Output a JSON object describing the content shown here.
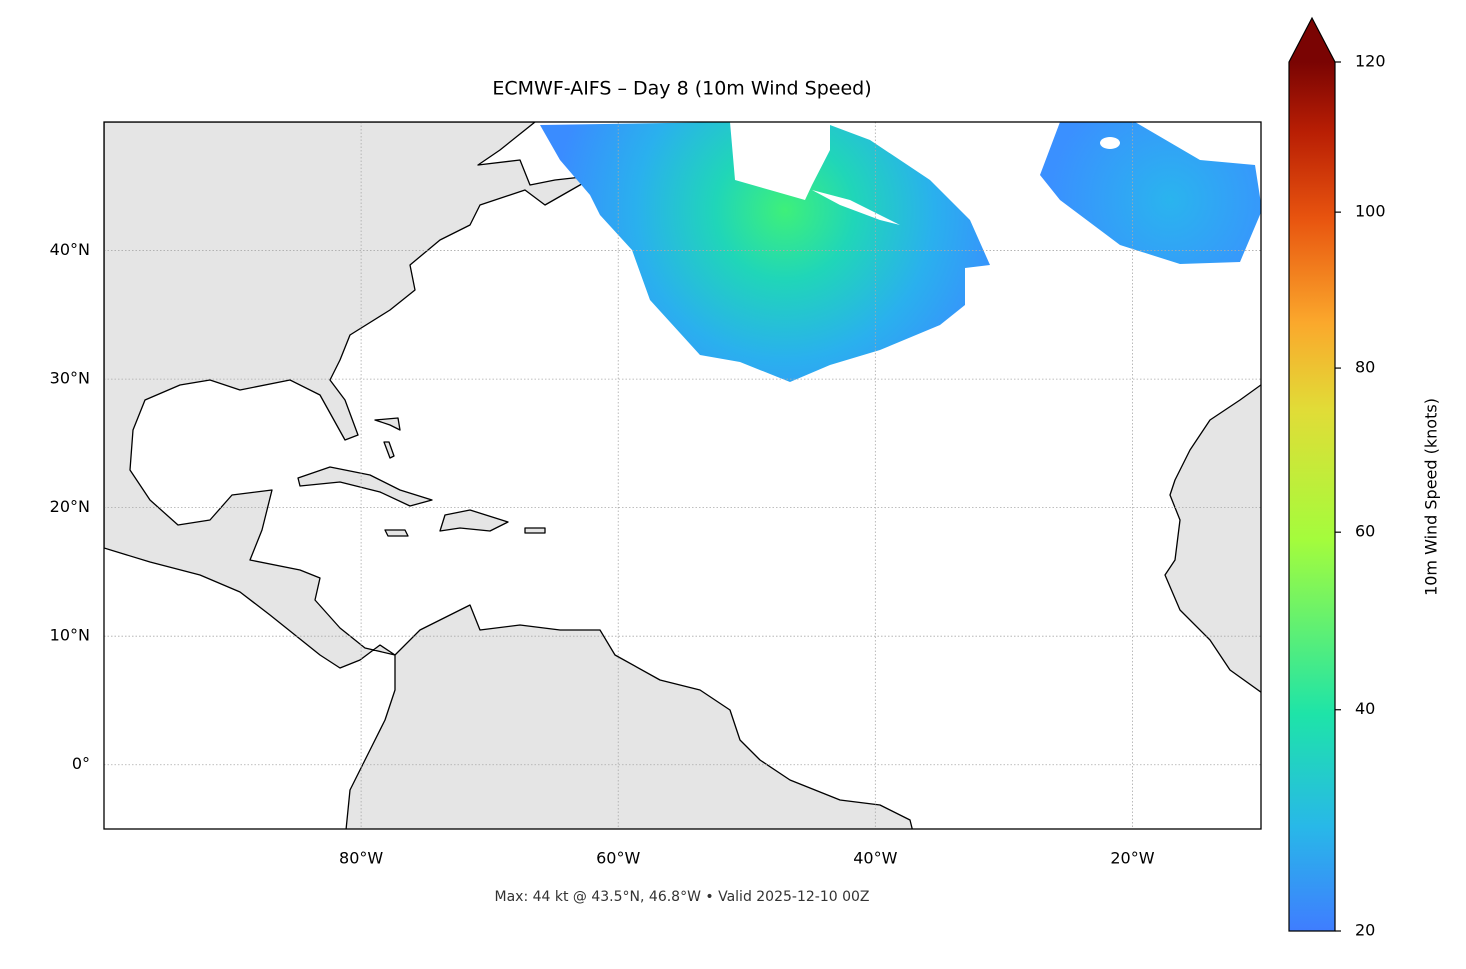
{
  "map": {
    "title": "ECMWF-AIFS – Day 8 (10m Wind Speed)",
    "xlim": [
      -100,
      -10
    ],
    "ylim": [
      -5,
      50
    ],
    "xticks": [
      {
        "value": -80,
        "label": "80°W"
      },
      {
        "value": -60,
        "label": "60°W"
      },
      {
        "value": -40,
        "label": "40°W"
      },
      {
        "value": -20,
        "label": "20°W"
      }
    ],
    "yticks": [
      {
        "value": 0,
        "label": "0°"
      },
      {
        "value": 10,
        "label": "10°N"
      },
      {
        "value": 20,
        "label": "20°N"
      },
      {
        "value": 30,
        "label": "30°N"
      },
      {
        "value": 40,
        "label": "40°N"
      }
    ],
    "grid": true,
    "annotation": "Max: 44 kt @ 43.5°N, 46.8°W • Valid 2025-12-10 00Z"
  },
  "colorbar": {
    "label": "10m Wind Speed (knots)",
    "lim": [
      20,
      120
    ],
    "ticks": [
      20,
      40,
      60,
      80,
      100,
      120
    ],
    "gamma": 0.85,
    "extend": "max"
  }
}
